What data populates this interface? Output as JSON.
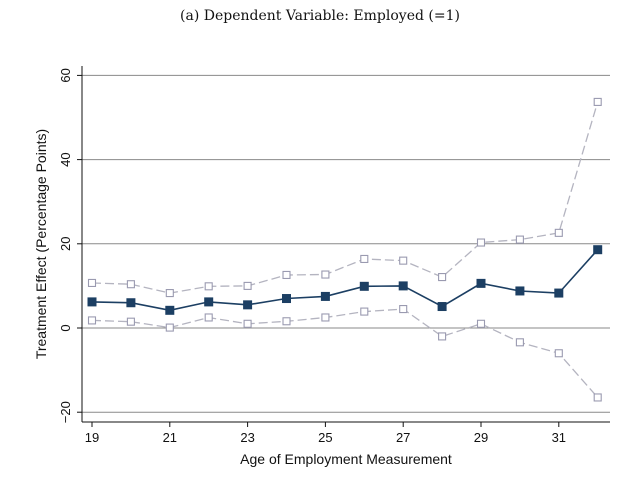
{
  "chart_data": {
    "type": "line",
    "title": "(a) Dependent Variable: Employed (=1)",
    "xlabel": "Age of Employment Measurement",
    "ylabel": "Treatment Effect (Percentage Points)",
    "xlim": [
      19,
      32
    ],
    "ylim": [
      -20,
      60
    ],
    "x_ticks": [
      19,
      21,
      23,
      25,
      27,
      29,
      31
    ],
    "y_ticks": [
      60,
      40,
      20,
      0,
      -20
    ],
    "x_tick_labels": [
      "19",
      "21",
      "23",
      "25",
      "27",
      "29",
      "31"
    ],
    "y_tick_labels": [
      "60",
      "40",
      "20",
      "0",
      "−20"
    ],
    "grid": "horizontal",
    "x": [
      19,
      20,
      21,
      22,
      23,
      24,
      25,
      26,
      27,
      28,
      29,
      30,
      31,
      32
    ],
    "series": [
      {
        "role": "estimate",
        "values": [
          6.2,
          6.0,
          4.2,
          6.2,
          5.5,
          7.0,
          7.5,
          9.9,
          10.0,
          5.1,
          10.6,
          8.8,
          8.3,
          18.6
        ],
        "color": "#1c3f63",
        "marker": "filled-square",
        "line": "solid"
      },
      {
        "role": "upper-bound",
        "values": [
          10.7,
          10.4,
          8.3,
          9.9,
          10.0,
          12.6,
          12.7,
          16.4,
          16.0,
          12.1,
          20.3,
          21.0,
          22.6,
          53.7
        ],
        "color": "#b4b4c0",
        "marker": "hollow-square",
        "line": "dashed"
      },
      {
        "role": "lower-bound",
        "values": [
          1.8,
          1.5,
          0.1,
          2.5,
          1.0,
          1.6,
          2.5,
          3.9,
          4.5,
          -2.0,
          1.0,
          -3.4,
          -6.0,
          -16.5
        ],
        "color": "#b4b4c0",
        "marker": "hollow-square",
        "line": "dashed"
      }
    ]
  }
}
